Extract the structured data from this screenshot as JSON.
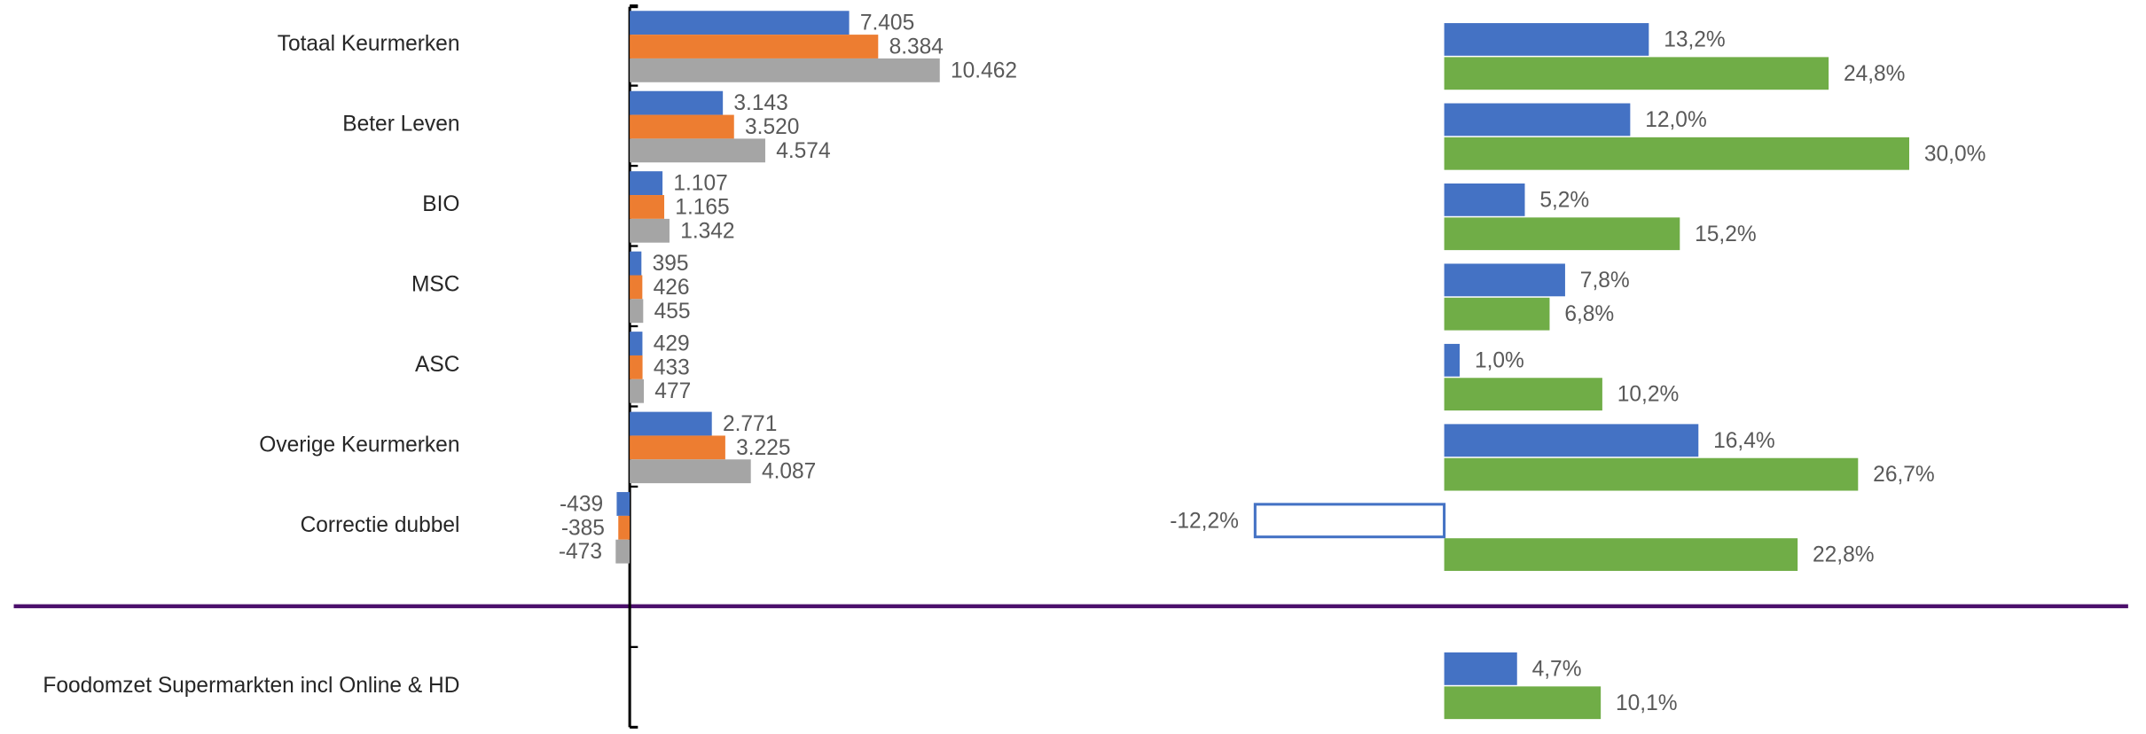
{
  "chart_data": [
    {
      "type": "bar",
      "orientation": "horizontal",
      "categories": [
        "Totaal Keurmerken",
        "Beter Leven",
        "BIO",
        "MSC",
        "ASC",
        "Overige Keurmerken",
        "Correctie dubbel",
        "Foodomzet Supermarkten incl Online & HD"
      ],
      "xlim": [
        -4000,
        15600
      ],
      "series": [
        {
          "color": "#4472c4",
          "values": [
            7405,
            3143,
            1107,
            395,
            429,
            2771,
            -439,
            null
          ],
          "value_labels": [
            "7.405",
            "3.143",
            "1.107",
            "395",
            "429",
            "2.771",
            "-439",
            null
          ]
        },
        {
          "color": "#ed7d31",
          "values": [
            8384,
            3520,
            1165,
            426,
            433,
            3225,
            -385,
            null
          ],
          "value_labels": [
            "8.384",
            "3.520",
            "1.165",
            "426",
            "433",
            "3.225",
            "-385",
            null
          ]
        },
        {
          "color": "#a5a5a5",
          "values": [
            10462,
            4574,
            1342,
            455,
            477,
            4087,
            -473,
            null
          ],
          "value_labels": [
            "10.462",
            "4.574",
            "1.342",
            "455",
            "477",
            "4.087",
            "-473",
            null
          ]
        }
      ]
    },
    {
      "type": "bar",
      "orientation": "horizontal",
      "negative_style": "outline",
      "xlim": [
        -20,
        44
      ],
      "series": [
        {
          "color": "#4472c4",
          "values": [
            13.2,
            12.0,
            5.2,
            7.8,
            1.0,
            16.4,
            -12.2,
            4.7
          ],
          "value_labels": [
            "13,2%",
            "12,0%",
            "5,2%",
            "7,8%",
            "1,0%",
            "16,4%",
            "-12,2%",
            "4,7%"
          ]
        },
        {
          "color": "#70ad47",
          "values": [
            24.8,
            30.0,
            15.2,
            6.8,
            10.2,
            26.7,
            22.8,
            10.1
          ],
          "value_labels": [
            "24,8%",
            "30,0%",
            "15,2%",
            "6,8%",
            "10,2%",
            "26,7%",
            "22,8%",
            "10,1%"
          ]
        }
      ]
    }
  ]
}
